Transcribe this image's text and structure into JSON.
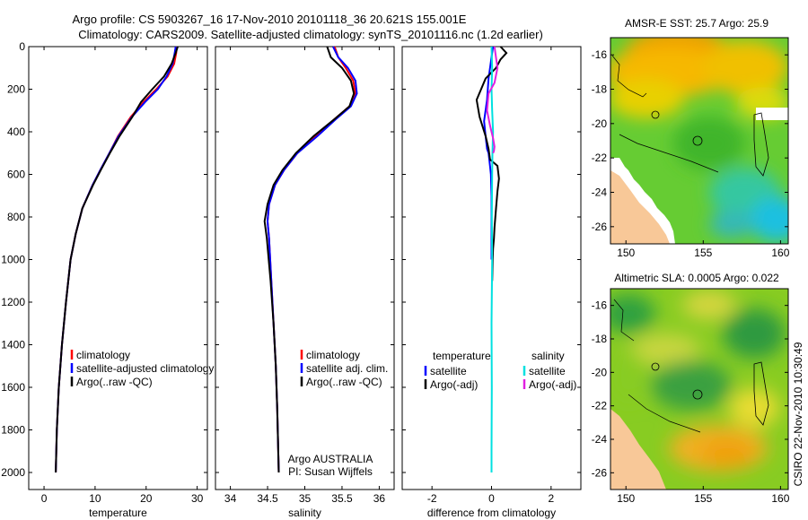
{
  "title": {
    "line1": "Argo profile: CS 5903267_16 17-Nov-2010 20101118_36 20.621S 155.001E",
    "line2": "Climatology: CARS2009. Satellite-adjusted climatology: synTS_20101116.nc (1.2d earlier)"
  },
  "side_text": "CSIRO 22-Nov-2010 10:30:49",
  "chart_data": [
    {
      "id": "temperature",
      "type": "line",
      "xlabel": "temperature",
      "ylabel": "",
      "xlim": [
        -3,
        32
      ],
      "ylim": [
        2080,
        0
      ],
      "xticks": [
        0,
        10,
        20,
        30
      ],
      "yticks": [
        0,
        200,
        400,
        600,
        800,
        1000,
        1200,
        1400,
        1600,
        1800,
        2000
      ],
      "legend": [
        "climatology",
        "satellite-adjusted climatology",
        "Argo(..raw -QC)"
      ],
      "series": [
        {
          "name": "climatology",
          "color": "#ff0000",
          "x": [
            26.0,
            25.9,
            25.5,
            24.2,
            22.0,
            19.5,
            17.0,
            14.5,
            12.8,
            11.0,
            9.5,
            7.5,
            6.2,
            5.2,
            4.3,
            3.5,
            2.9,
            2.5,
            2.3
          ],
          "y": [
            0,
            30,
            80,
            140,
            200,
            260,
            330,
            420,
            500,
            580,
            650,
            760,
            880,
            1000,
            1200,
            1400,
            1600,
            1800,
            2000
          ]
        },
        {
          "name": "satellite-adjusted climatology",
          "color": "#0000ff",
          "x": [
            25.8,
            25.6,
            25.2,
            24.0,
            22.3,
            19.8,
            17.2,
            14.6,
            12.8,
            11.0,
            9.5,
            7.5,
            6.2,
            5.2,
            4.3,
            3.5,
            2.9,
            2.5,
            2.3
          ],
          "y": [
            0,
            30,
            80,
            140,
            200,
            260,
            330,
            420,
            500,
            580,
            650,
            760,
            880,
            1000,
            1200,
            1400,
            1600,
            1800,
            2000
          ]
        },
        {
          "name": "Argo(..raw -QC)",
          "color": "#000000",
          "x": [
            26.2,
            25.8,
            25.0,
            23.5,
            21.2,
            19.0,
            17.3,
            14.8,
            12.9,
            11.1,
            9.6,
            7.5,
            6.2,
            5.2,
            4.3,
            3.5,
            2.9,
            2.5,
            2.3
          ],
          "y": [
            0,
            30,
            80,
            140,
            200,
            260,
            330,
            420,
            500,
            580,
            650,
            760,
            880,
            1000,
            1200,
            1400,
            1600,
            1800,
            2000
          ]
        }
      ]
    },
    {
      "id": "salinity",
      "type": "line",
      "xlabel": "salinity",
      "ylabel": "",
      "xlim": [
        33.8,
        36.2
      ],
      "ylim": [
        2080,
        0
      ],
      "xticks": [
        34,
        34.5,
        35,
        35.5,
        36
      ],
      "legend": [
        "climatology",
        "satellite adj. clim.",
        "Argo(..raw -QC)"
      ],
      "series": [
        {
          "name": "climatology",
          "color": "#ff0000",
          "x": [
            35.4,
            35.45,
            35.55,
            35.65,
            35.68,
            35.6,
            35.4,
            35.15,
            34.9,
            34.72,
            34.6,
            34.52,
            34.5,
            34.52,
            34.55,
            34.58,
            34.61,
            34.63,
            34.65
          ],
          "y": [
            0,
            50,
            100,
            160,
            220,
            280,
            340,
            420,
            500,
            580,
            650,
            740,
            820,
            900,
            1100,
            1300,
            1500,
            1700,
            2000
          ]
        },
        {
          "name": "satellite adj. clim.",
          "color": "#0000ff",
          "x": [
            35.38,
            35.45,
            35.58,
            35.68,
            35.7,
            35.62,
            35.42,
            35.17,
            34.9,
            34.72,
            34.6,
            34.52,
            34.5,
            34.52,
            34.55,
            34.58,
            34.61,
            34.63,
            34.65
          ],
          "y": [
            0,
            50,
            100,
            160,
            220,
            280,
            340,
            420,
            500,
            580,
            650,
            740,
            820,
            900,
            1100,
            1300,
            1500,
            1700,
            2000
          ]
        },
        {
          "name": "Argo(..raw -QC)",
          "color": "#000000",
          "x": [
            35.3,
            35.35,
            35.5,
            35.62,
            35.66,
            35.6,
            35.4,
            35.12,
            34.88,
            34.7,
            34.58,
            34.5,
            34.46,
            34.49,
            34.54,
            34.58,
            34.61,
            34.63,
            34.65
          ],
          "y": [
            0,
            50,
            100,
            160,
            220,
            280,
            340,
            420,
            500,
            580,
            650,
            740,
            820,
            900,
            1100,
            1300,
            1500,
            1700,
            2000
          ]
        }
      ],
      "annotation": [
        "Argo AUSTRALIA",
        "PI: Susan Wijffels"
      ]
    },
    {
      "id": "difference",
      "type": "line",
      "xlabel": "difference from climatology",
      "ylabel": "",
      "xlim": [
        -3.0,
        3.0
      ],
      "ylim": [
        2080,
        0
      ],
      "xticks": [
        -2,
        0,
        2
      ],
      "legend_headers": [
        "temperature",
        "salinity"
      ],
      "legend": [
        "satellite",
        "Argo(-adj)",
        "satellite",
        "Argo(-adj)"
      ],
      "series": [
        {
          "name": "temperature satellite",
          "color": "#0000ff",
          "x": [
            0.05,
            0.0,
            -0.1,
            -0.15,
            -0.25,
            -0.2,
            -0.15,
            -0.1,
            -0.05,
            -0.02,
            0.0,
            0.0,
            0.0,
            0.0
          ],
          "y": [
            0,
            50,
            150,
            250,
            350,
            420,
            480,
            500,
            560,
            600,
            700,
            800,
            900,
            1000
          ]
        },
        {
          "name": "temperature Argo(-adj)",
          "color": "#000000",
          "x": [
            0.3,
            0.5,
            0.3,
            0.15,
            -0.2,
            -0.5,
            -0.4,
            -0.2,
            -0.1,
            -0.05,
            0.2,
            0.25,
            0.2,
            0.15,
            0.1,
            0.08,
            0.05,
            0.04,
            0.03,
            0.02
          ],
          "y": [
            0,
            30,
            60,
            100,
            150,
            250,
            330,
            420,
            480,
            530,
            560,
            620,
            680,
            760,
            850,
            900,
            950,
            1000,
            1050,
            1100
          ]
        },
        {
          "name": "salinity satellite",
          "color": "#00e0e0",
          "x": [
            0.0,
            0.02,
            0.0,
            0.02,
            0.05,
            0.03,
            0.02,
            0.01,
            0.02,
            0.0,
            0.01,
            0.0,
            0.0
          ],
          "y": [
            0,
            100,
            200,
            300,
            400,
            500,
            600,
            800,
            1000,
            1300,
            1600,
            1900,
            2000
          ]
        },
        {
          "name": "salinity Argo(-adj)",
          "color": "#e020e0",
          "x": [
            0.1,
            0.2,
            0.1,
            -0.1,
            -0.15,
            -0.05,
            0.05,
            0.1,
            0.08,
            0.05
          ],
          "y": [
            0,
            100,
            170,
            220,
            300,
            370,
            430,
            470,
            490,
            500
          ]
        }
      ]
    },
    {
      "id": "sst_map",
      "type": "heatmap",
      "title": "AMSR-E SST: 25.7 Argo: 25.9",
      "xlim": [
        149,
        160.5
      ],
      "ylim": [
        -27,
        -15
      ],
      "xticks": [
        150,
        155,
        160
      ],
      "yticks": [
        -16,
        -18,
        -20,
        -22,
        -24,
        -26
      ],
      "profile_location": [
        155.0,
        -20.6
      ]
    },
    {
      "id": "sla_map",
      "type": "heatmap",
      "title": "Altimetric SLA: 0.0005 Argo: 0.022",
      "xlim": [
        149,
        160.5
      ],
      "ylim": [
        -27,
        -15
      ],
      "xticks": [
        150,
        155,
        160
      ],
      "yticks": [
        -16,
        -18,
        -20,
        -22,
        -24,
        -26
      ],
      "profile_location": [
        155.0,
        -20.6
      ]
    }
  ]
}
